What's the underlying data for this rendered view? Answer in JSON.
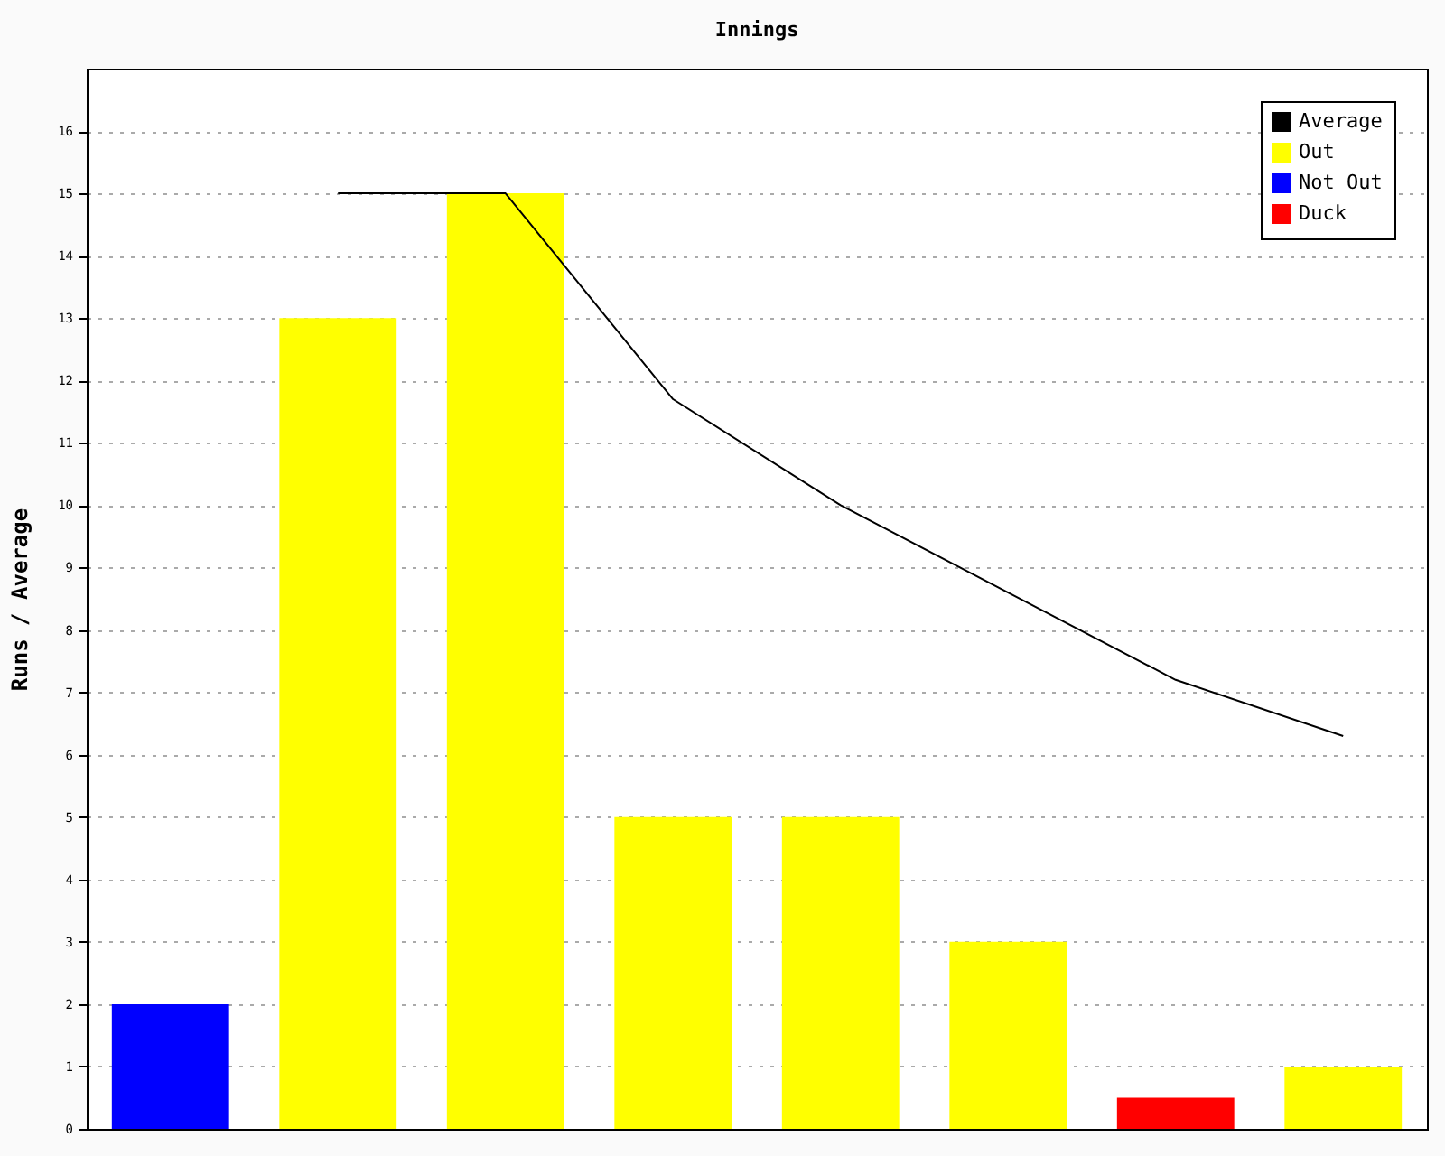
{
  "chart_data": {
    "type": "bar",
    "title": "Innings",
    "ylabel": "Runs / Average",
    "categories": [
      null,
      null,
      null,
      null,
      null,
      null,
      null,
      null
    ],
    "series": [
      {
        "name": "Average",
        "type": "line",
        "color": "#000000",
        "values": [
          null,
          15,
          15,
          11.7,
          10,
          8.6,
          7.2,
          6.3
        ]
      },
      {
        "name": "Out",
        "color": "#ffff00",
        "values": [
          null,
          13,
          15,
          5,
          5,
          3,
          null,
          1
        ]
      },
      {
        "name": "Not Out",
        "color": "#0000ff",
        "values": [
          2,
          null,
          null,
          null,
          null,
          null,
          null,
          null
        ]
      },
      {
        "name": "Duck",
        "color": "#ff0000",
        "values": [
          null,
          null,
          null,
          null,
          null,
          null,
          0.5,
          null
        ]
      }
    ],
    "ylim": [
      0,
      17
    ],
    "yticks": [
      0,
      1,
      2,
      3,
      4,
      5,
      6,
      7,
      8,
      9,
      10,
      11,
      12,
      13,
      14,
      15,
      16
    ],
    "grid": "y",
    "legend": "top right",
    "tick_labels": "y"
  }
}
